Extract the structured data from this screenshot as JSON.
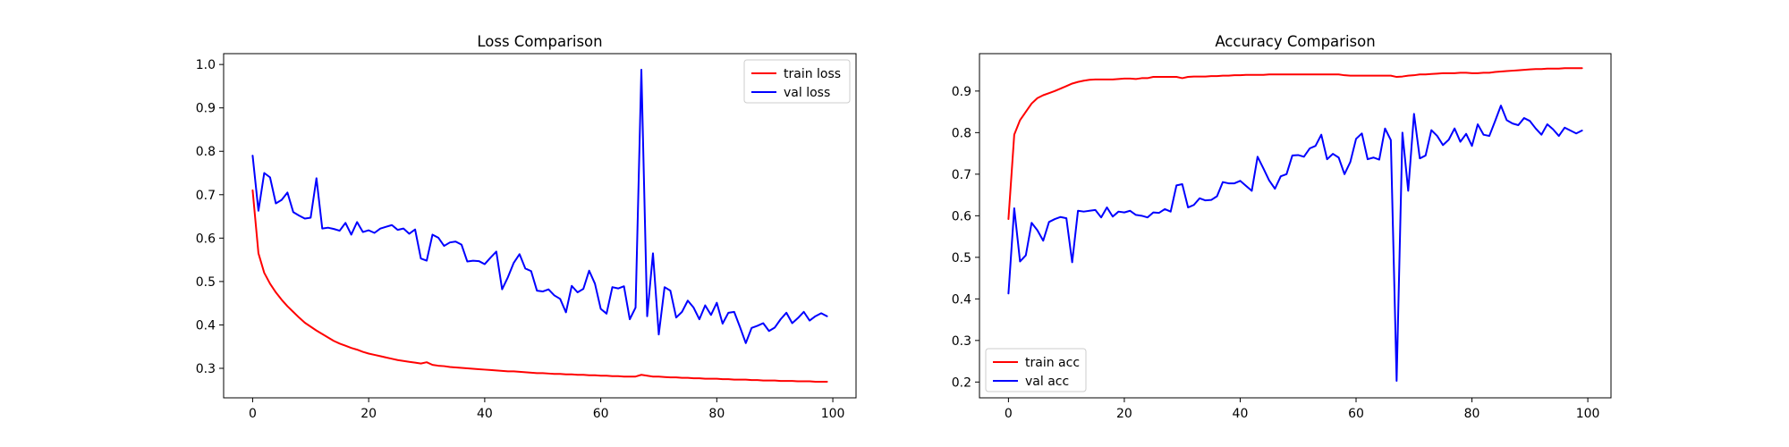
{
  "chart_data": [
    {
      "type": "line",
      "title": "Loss Comparison",
      "xlabel": "",
      "ylabel": "",
      "xlim": [
        -5,
        104
      ],
      "ylim": [
        0.232,
        1.025
      ],
      "xticks": [
        "0",
        "20",
        "40",
        "60",
        "80",
        "100"
      ],
      "xtick_values": [
        0,
        20,
        40,
        60,
        80,
        100
      ],
      "yticks": [
        "0.3",
        "0.4",
        "0.5",
        "0.6",
        "0.7",
        "0.8",
        "0.9",
        "1.0"
      ],
      "ytick_values": [
        0.3,
        0.4,
        0.5,
        0.6,
        0.7,
        0.8,
        0.9,
        1.0
      ],
      "grid": false,
      "legend_position": "top-right",
      "series": [
        {
          "name": "train loss",
          "color": "#ff0000",
          "values": [
            0.71,
            0.565,
            0.52,
            0.495,
            0.475,
            0.458,
            0.443,
            0.43,
            0.417,
            0.405,
            0.396,
            0.387,
            0.379,
            0.371,
            0.363,
            0.357,
            0.352,
            0.347,
            0.343,
            0.338,
            0.334,
            0.331,
            0.328,
            0.325,
            0.322,
            0.319,
            0.317,
            0.315,
            0.313,
            0.311,
            0.314,
            0.308,
            0.306,
            0.305,
            0.303,
            0.302,
            0.301,
            0.3,
            0.299,
            0.298,
            0.297,
            0.296,
            0.295,
            0.294,
            0.293,
            0.293,
            0.292,
            0.291,
            0.29,
            0.289,
            0.289,
            0.288,
            0.287,
            0.287,
            0.286,
            0.286,
            0.285,
            0.285,
            0.284,
            0.284,
            0.283,
            0.283,
            0.282,
            0.282,
            0.281,
            0.281,
            0.281,
            0.285,
            0.283,
            0.281,
            0.281,
            0.28,
            0.279,
            0.279,
            0.278,
            0.278,
            0.277,
            0.277,
            0.276,
            0.276,
            0.276,
            0.275,
            0.275,
            0.274,
            0.274,
            0.274,
            0.273,
            0.273,
            0.272,
            0.272,
            0.272,
            0.271,
            0.271,
            0.271,
            0.27,
            0.27,
            0.27,
            0.269,
            0.269,
            0.269
          ]
        },
        {
          "name": "val loss",
          "color": "#0000ff",
          "values": [
            0.79,
            0.663,
            0.75,
            0.74,
            0.68,
            0.688,
            0.705,
            0.66,
            0.652,
            0.645,
            0.647,
            0.738,
            0.622,
            0.624,
            0.621,
            0.617,
            0.635,
            0.608,
            0.637,
            0.614,
            0.618,
            0.612,
            0.622,
            0.626,
            0.63,
            0.619,
            0.622,
            0.61,
            0.62,
            0.553,
            0.548,
            0.608,
            0.601,
            0.582,
            0.59,
            0.592,
            0.585,
            0.546,
            0.548,
            0.547,
            0.54,
            0.555,
            0.569,
            0.482,
            0.51,
            0.543,
            0.563,
            0.53,
            0.524,
            0.479,
            0.477,
            0.482,
            0.468,
            0.46,
            0.429,
            0.49,
            0.475,
            0.483,
            0.525,
            0.495,
            0.437,
            0.426,
            0.487,
            0.484,
            0.489,
            0.413,
            0.44,
            0.988,
            0.42,
            0.565,
            0.378,
            0.487,
            0.479,
            0.417,
            0.43,
            0.456,
            0.44,
            0.413,
            0.445,
            0.423,
            0.451,
            0.403,
            0.428,
            0.43,
            0.395,
            0.358,
            0.393,
            0.398,
            0.404,
            0.386,
            0.394,
            0.413,
            0.428,
            0.404,
            0.416,
            0.43,
            0.41,
            0.42,
            0.427,
            0.42
          ]
        }
      ]
    },
    {
      "type": "line",
      "title": "Accuracy Comparison",
      "xlabel": "",
      "ylabel": "",
      "xlim": [
        -5,
        104
      ],
      "ylim": [
        0.162,
        0.99
      ],
      "xticks": [
        "0",
        "20",
        "40",
        "60",
        "80",
        "100"
      ],
      "xtick_values": [
        0,
        20,
        40,
        60,
        80,
        100
      ],
      "yticks": [
        "0.2",
        "0.3",
        "0.4",
        "0.5",
        "0.6",
        "0.7",
        "0.8",
        "0.9"
      ],
      "ytick_values": [
        0.2,
        0.3,
        0.4,
        0.5,
        0.6,
        0.7,
        0.8,
        0.9
      ],
      "grid": false,
      "legend_position": "bottom-left",
      "series": [
        {
          "name": "train acc",
          "color": "#ff0000",
          "values": [
            0.592,
            0.795,
            0.83,
            0.85,
            0.87,
            0.883,
            0.89,
            0.895,
            0.9,
            0.906,
            0.912,
            0.918,
            0.922,
            0.925,
            0.927,
            0.928,
            0.928,
            0.928,
            0.928,
            0.929,
            0.93,
            0.93,
            0.929,
            0.931,
            0.931,
            0.934,
            0.934,
            0.934,
            0.934,
            0.934,
            0.931,
            0.934,
            0.935,
            0.935,
            0.935,
            0.936,
            0.936,
            0.937,
            0.937,
            0.938,
            0.938,
            0.939,
            0.939,
            0.939,
            0.939,
            0.94,
            0.94,
            0.94,
            0.94,
            0.94,
            0.94,
            0.94,
            0.94,
            0.94,
            0.94,
            0.94,
            0.94,
            0.94,
            0.938,
            0.937,
            0.937,
            0.937,
            0.937,
            0.937,
            0.937,
            0.937,
            0.937,
            0.934,
            0.935,
            0.937,
            0.938,
            0.94,
            0.94,
            0.941,
            0.942,
            0.943,
            0.943,
            0.943,
            0.944,
            0.944,
            0.943,
            0.943,
            0.944,
            0.944,
            0.946,
            0.947,
            0.948,
            0.949,
            0.95,
            0.951,
            0.952,
            0.953,
            0.953,
            0.954,
            0.954,
            0.954,
            0.955,
            0.955,
            0.955,
            0.955
          ]
        },
        {
          "name": "val acc",
          "color": "#0000ff",
          "values": [
            0.413,
            0.618,
            0.49,
            0.505,
            0.583,
            0.565,
            0.54,
            0.585,
            0.592,
            0.597,
            0.594,
            0.488,
            0.612,
            0.61,
            0.612,
            0.614,
            0.596,
            0.62,
            0.598,
            0.61,
            0.608,
            0.612,
            0.602,
            0.6,
            0.596,
            0.608,
            0.607,
            0.616,
            0.61,
            0.673,
            0.676,
            0.62,
            0.626,
            0.642,
            0.637,
            0.638,
            0.647,
            0.681,
            0.678,
            0.678,
            0.684,
            0.672,
            0.66,
            0.742,
            0.714,
            0.685,
            0.665,
            0.695,
            0.7,
            0.745,
            0.746,
            0.742,
            0.762,
            0.768,
            0.795,
            0.736,
            0.749,
            0.74,
            0.7,
            0.729,
            0.785,
            0.798,
            0.736,
            0.74,
            0.735,
            0.81,
            0.782,
            0.203,
            0.8,
            0.66,
            0.845,
            0.738,
            0.745,
            0.806,
            0.792,
            0.77,
            0.783,
            0.81,
            0.778,
            0.797,
            0.768,
            0.82,
            0.795,
            0.792,
            0.828,
            0.865,
            0.83,
            0.822,
            0.818,
            0.835,
            0.828,
            0.81,
            0.795,
            0.82,
            0.808,
            0.792,
            0.812,
            0.805,
            0.798,
            0.805
          ]
        }
      ]
    }
  ]
}
